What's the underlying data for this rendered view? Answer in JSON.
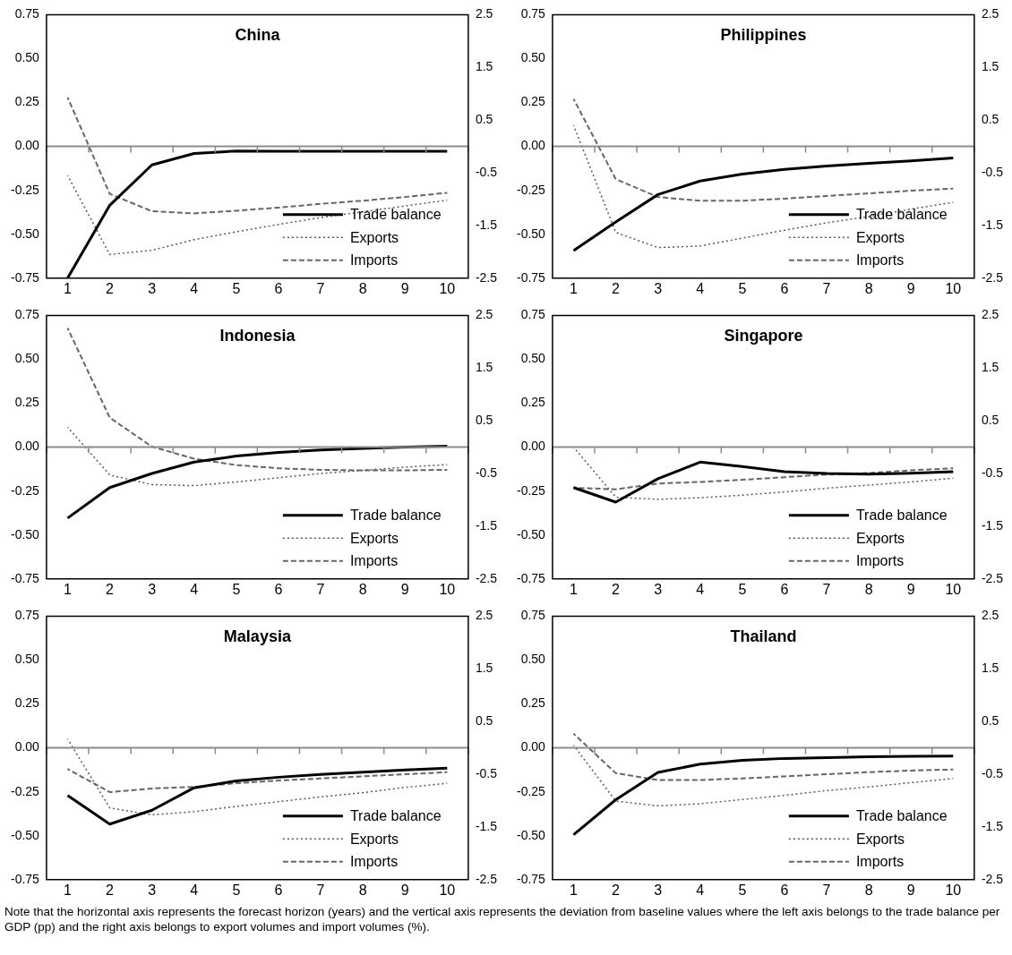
{
  "chart_data": [
    {
      "type": "line",
      "title": "China",
      "categories": [
        "1",
        "2",
        "3",
        "4",
        "5",
        "6",
        "7",
        "8",
        "9",
        "10"
      ],
      "legend": "bottom right",
      "ylim": [
        -0.75,
        0.75
      ],
      "yticks": [
        {
          "value": 0.75,
          "label": "0.75"
        },
        {
          "value": 0.5,
          "label": "0.50"
        },
        {
          "value": 0.25,
          "label": "0.25"
        },
        {
          "value": 0,
          "label": "0.00"
        },
        {
          "value": -0.25,
          "label": "-0.25"
        },
        {
          "value": -0.5,
          "label": "-0.50"
        },
        {
          "value": -0.75,
          "label": "-0.75"
        }
      ],
      "y2lim": [
        -2.5,
        2.5
      ],
      "y2ticks": [
        2.5,
        1.5,
        0.5,
        -0.5,
        -1.5,
        -2.5
      ],
      "series": [
        {
          "name": "Trade balance",
          "color": "#000000",
          "line_style": "solid",
          "values": [
            -0.75,
            -0.335,
            -0.105,
            -0.04,
            -0.026,
            -0.027,
            -0.028,
            -0.028,
            -0.028,
            -0.028
          ]
        },
        {
          "name": "Exports",
          "color": "#595959",
          "line_style": "dotted",
          "axis": "y2",
          "values": [
            -0.55,
            -2.05,
            -1.97,
            -1.77,
            -1.62,
            -1.48,
            -1.35,
            -1.24,
            -1.13,
            -1.02
          ]
        },
        {
          "name": "Imports",
          "color": "#666666",
          "line_style": "dashed",
          "axis": "y2",
          "values": [
            0.93,
            -0.9,
            -1.23,
            -1.27,
            -1.22,
            -1.16,
            -1.09,
            -1.03,
            -0.96,
            -0.88
          ]
        }
      ]
    },
    {
      "type": "line",
      "title": "Philippines",
      "categories": [
        "1",
        "2",
        "3",
        "4",
        "5",
        "6",
        "7",
        "8",
        "9",
        "10"
      ],
      "legend": "bottom right",
      "ylim": [
        -0.75,
        0.75
      ],
      "yticks": [
        {
          "value": 0.75,
          "label": "0.75"
        },
        {
          "value": 0.5,
          "label": "0.50"
        },
        {
          "value": 0.25,
          "label": "0.25"
        },
        {
          "value": 0,
          "label": "0.00"
        },
        {
          "value": -0.25,
          "label": "-0.25"
        },
        {
          "value": -0.5,
          "label": "-0.50"
        },
        {
          "value": -0.75,
          "label": "-0.75"
        }
      ],
      "y2lim": [
        -2.5,
        2.5
      ],
      "y2ticks": [
        2.5,
        1.5,
        0.5,
        -0.5,
        -1.5,
        -2.5
      ],
      "series": [
        {
          "name": "Trade balance",
          "color": "#000000",
          "line_style": "solid",
          "values": [
            -0.593,
            -0.43,
            -0.274,
            -0.197,
            -0.157,
            -0.131,
            -0.112,
            -0.096,
            -0.082,
            -0.066
          ]
        },
        {
          "name": "Exports",
          "color": "#595959",
          "line_style": "dotted",
          "axis": "y2",
          "values": [
            0.4,
            -1.63,
            -1.92,
            -1.89,
            -1.74,
            -1.59,
            -1.45,
            -1.33,
            -1.19,
            -1.06
          ]
        },
        {
          "name": "Imports",
          "color": "#666666",
          "line_style": "dashed",
          "axis": "y2",
          "values": [
            0.9,
            -0.62,
            -0.96,
            -1.03,
            -1.03,
            -0.99,
            -0.94,
            -0.89,
            -0.84,
            -0.8
          ]
        }
      ]
    },
    {
      "type": "line",
      "title": "Indonesia",
      "categories": [
        "1",
        "2",
        "3",
        "4",
        "5",
        "6",
        "7",
        "8",
        "9",
        "10"
      ],
      "legend": "bottom right",
      "ylim": [
        -0.75,
        0.75
      ],
      "yticks": [
        {
          "value": 0.75,
          "label": "0.75"
        },
        {
          "value": 0.5,
          "label": "0.50"
        },
        {
          "value": 0.25,
          "label": "0.25"
        },
        {
          "value": 0,
          "label": "0.00"
        },
        {
          "value": -0.25,
          "label": "-0.25"
        },
        {
          "value": -0.5,
          "label": "-0.50"
        },
        {
          "value": -0.75,
          "label": "-0.75"
        }
      ],
      "y2lim": [
        -2.5,
        2.5
      ],
      "y2ticks": [
        2.5,
        1.5,
        0.5,
        -0.5,
        -1.5,
        -2.5
      ],
      "series": [
        {
          "name": "Trade balance",
          "color": "#000000",
          "line_style": "solid",
          "values": [
            -0.404,
            -0.23,
            -0.15,
            -0.085,
            -0.051,
            -0.03,
            -0.016,
            -0.007,
            0.0,
            0.005
          ]
        },
        {
          "name": "Exports",
          "color": "#595959",
          "line_style": "dotted",
          "axis": "y2",
          "values": [
            0.38,
            -0.53,
            -0.71,
            -0.73,
            -0.66,
            -0.58,
            -0.5,
            -0.44,
            -0.38,
            -0.33
          ]
        },
        {
          "name": "Imports",
          "color": "#666666",
          "line_style": "dashed",
          "axis": "y2",
          "values": [
            2.26,
            0.56,
            0.01,
            -0.22,
            -0.34,
            -0.4,
            -0.43,
            -0.44,
            -0.44,
            -0.43
          ]
        }
      ]
    },
    {
      "type": "line",
      "title": "Singapore",
      "categories": [
        "1",
        "2",
        "3",
        "4",
        "5",
        "6",
        "7",
        "8",
        "9",
        "10"
      ],
      "legend": "bottom right",
      "ylim": [
        -0.75,
        0.75
      ],
      "yticks": [
        {
          "value": 0.75,
          "label": "0.75"
        },
        {
          "value": 0.5,
          "label": "0.50"
        },
        {
          "value": 0.25,
          "label": "0.25"
        },
        {
          "value": 0,
          "label": "0.00"
        },
        {
          "value": -0.25,
          "label": "-0.25"
        },
        {
          "value": -0.5,
          "label": "-0.50"
        },
        {
          "value": -0.75,
          "label": "-0.75"
        }
      ],
      "y2lim": [
        -2.5,
        2.5
      ],
      "y2ticks": [
        2.5,
        1.5,
        0.5,
        -0.5,
        -1.5,
        -2.5
      ],
      "series": [
        {
          "name": "Trade balance",
          "color": "#000000",
          "line_style": "solid",
          "values": [
            -0.23,
            -0.313,
            -0.18,
            -0.085,
            -0.11,
            -0.14,
            -0.15,
            -0.154,
            -0.149,
            -0.14
          ]
        },
        {
          "name": "Exports",
          "color": "#595959",
          "line_style": "dotted",
          "axis": "y2",
          "values": [
            0.0,
            -0.95,
            -0.99,
            -0.96,
            -0.91,
            -0.85,
            -0.78,
            -0.72,
            -0.66,
            -0.59
          ]
        },
        {
          "name": "Imports",
          "color": "#666666",
          "line_style": "dashed",
          "axis": "y2",
          "values": [
            -0.77,
            -0.8,
            -0.69,
            -0.66,
            -0.62,
            -0.57,
            -0.52,
            -0.49,
            -0.44,
            -0.4
          ]
        }
      ]
    },
    {
      "type": "line",
      "title": "Malaysia",
      "categories": [
        "1",
        "2",
        "3",
        "4",
        "5",
        "6",
        "7",
        "8",
        "9",
        "10"
      ],
      "legend": "bottom right",
      "ylim": [
        -0.75,
        0.75
      ],
      "yticks": [
        {
          "value": 0.75,
          "label": "0.75"
        },
        {
          "value": 0.5,
          "label": "0.50"
        },
        {
          "value": 0.25,
          "label": "0.25"
        },
        {
          "value": 0,
          "label": "0.00"
        },
        {
          "value": -0.25,
          "label": "-0.25"
        },
        {
          "value": -0.5,
          "label": "-0.50"
        },
        {
          "value": -0.75,
          "label": "-0.75"
        }
      ],
      "y2lim": [
        -2.5,
        2.5
      ],
      "y2ticks": [
        2.5,
        1.5,
        0.5,
        -0.5,
        -1.5,
        -2.5
      ],
      "series": [
        {
          "name": "Trade balance",
          "color": "#000000",
          "line_style": "solid",
          "values": [
            -0.271,
            -0.434,
            -0.355,
            -0.227,
            -0.188,
            -0.167,
            -0.151,
            -0.138,
            -0.126,
            -0.115
          ]
        },
        {
          "name": "Exports",
          "color": "#595959",
          "line_style": "dotted",
          "axis": "y2",
          "values": [
            0.17,
            -1.14,
            -1.27,
            -1.21,
            -1.11,
            -1.02,
            -0.93,
            -0.85,
            -0.75,
            -0.67
          ]
        },
        {
          "name": "Imports",
          "color": "#666666",
          "line_style": "dashed",
          "axis": "y2",
          "values": [
            -0.4,
            -0.84,
            -0.77,
            -0.74,
            -0.67,
            -0.62,
            -0.58,
            -0.54,
            -0.5,
            -0.46
          ]
        }
      ]
    },
    {
      "type": "line",
      "title": "Thailand",
      "categories": [
        "1",
        "2",
        "3",
        "4",
        "5",
        "6",
        "7",
        "8",
        "9",
        "10"
      ],
      "legend": "bottom right",
      "ylim": [
        -0.75,
        0.75
      ],
      "yticks": [
        {
          "value": 0.75,
          "label": "0.75"
        },
        {
          "value": 0.5,
          "label": "0.50"
        },
        {
          "value": 0.25,
          "label": "0.25"
        },
        {
          "value": 0,
          "label": "0.00"
        },
        {
          "value": -0.25,
          "label": "-0.25"
        },
        {
          "value": -0.5,
          "label": "-0.50"
        },
        {
          "value": -0.75,
          "label": "-0.75"
        }
      ],
      "y2lim": [
        -2.5,
        2.5
      ],
      "y2ticks": [
        2.5,
        1.5,
        0.5,
        -0.5,
        -1.5,
        -2.5
      ],
      "series": [
        {
          "name": "Trade balance",
          "color": "#000000",
          "line_style": "solid",
          "values": [
            -0.494,
            -0.295,
            -0.14,
            -0.092,
            -0.071,
            -0.06,
            -0.055,
            -0.05,
            -0.048,
            -0.046
          ]
        },
        {
          "name": "Exports",
          "color": "#595959",
          "line_style": "dotted",
          "axis": "y2",
          "values": [
            0.05,
            -1.01,
            -1.1,
            -1.06,
            -0.98,
            -0.9,
            -0.81,
            -0.74,
            -0.66,
            -0.58
          ]
        },
        {
          "name": "Imports",
          "color": "#666666",
          "line_style": "dashed",
          "axis": "y2",
          "values": [
            0.27,
            -0.48,
            -0.61,
            -0.61,
            -0.58,
            -0.54,
            -0.5,
            -0.46,
            -0.43,
            -0.41
          ]
        }
      ],
      "annotations": [
        "Note that the horizontal axis represents the forecast horizon (years) and the vertical axis represents the deviation from baseline values where the left axis belongs to the trade balance per GDP (pp) and the right axis belongs to export volumes and import volumes (%)."
      ]
    }
  ]
}
